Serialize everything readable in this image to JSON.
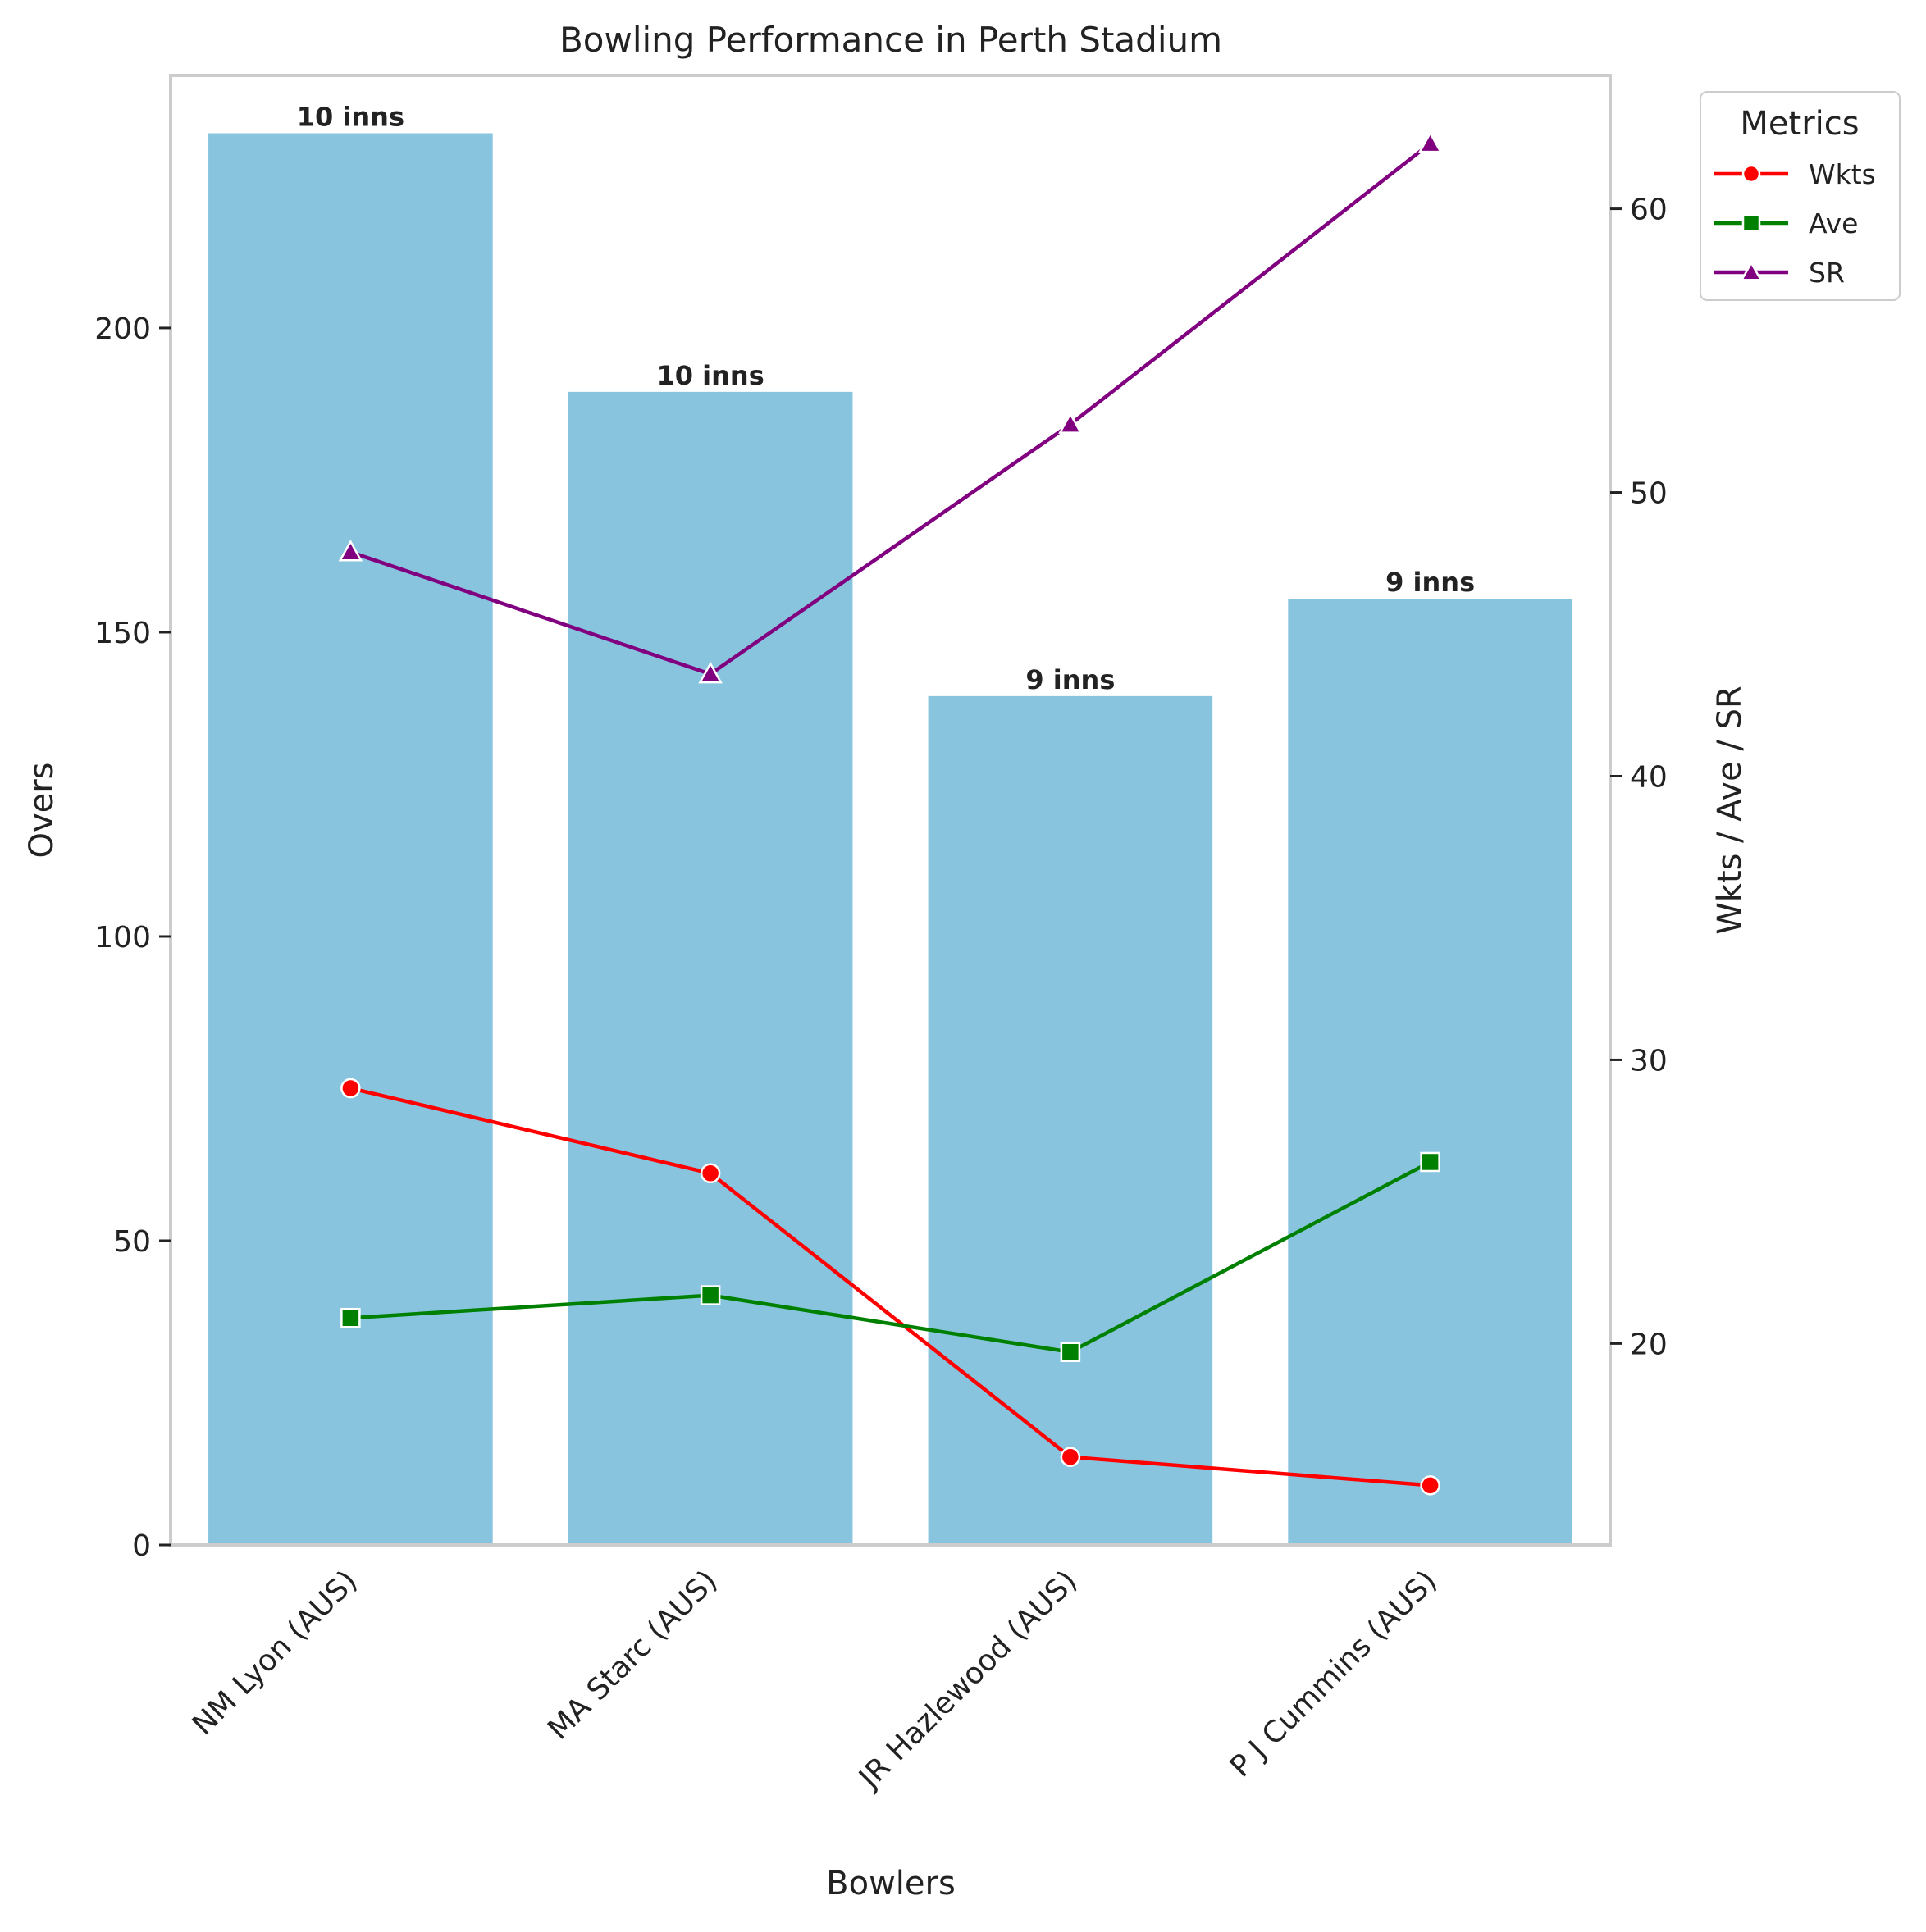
{
  "chart_data": {
    "type": "bar",
    "title": "Bowling Performance in Perth Stadium",
    "xlabel": "Bowlers",
    "ylabel": "Overs",
    "y2label": "Wkts / Ave / SR",
    "categories": [
      "NM Lyon (AUS)",
      "MA Starc (AUS)",
      "JR Hazlewood (AUS)",
      "P J Cummins (AUS)"
    ],
    "bar_series": {
      "name": "Overs",
      "values": [
        232,
        189.5,
        139.5,
        155.5
      ],
      "color": "#89c4de"
    },
    "bar_labels": [
      "10 inns",
      "10 inns",
      "9 inns",
      "9 inns"
    ],
    "line_series": [
      {
        "name": "Wkts",
        "values": [
          29,
          26,
          16,
          15
        ],
        "color": "#ff0000",
        "marker": "circle"
      },
      {
        "name": "Ave",
        "values": [
          20.9,
          21.7,
          19.7,
          26.4
        ],
        "color": "#008000",
        "marker": "square"
      },
      {
        "name": "SR",
        "values": [
          47.9,
          43.6,
          52.4,
          62.3
        ],
        "color": "#800080",
        "marker": "triangle"
      }
    ],
    "ylim": [
      0,
      241.5
    ],
    "y2lim": [
      12.9,
      64.7
    ],
    "yticks": [
      0,
      50,
      100,
      150,
      200
    ],
    "y2ticks": [
      20,
      30,
      40,
      50,
      60
    ],
    "grid": false,
    "legend": {
      "title": "Metrics",
      "placement": "outside-top-right"
    }
  }
}
